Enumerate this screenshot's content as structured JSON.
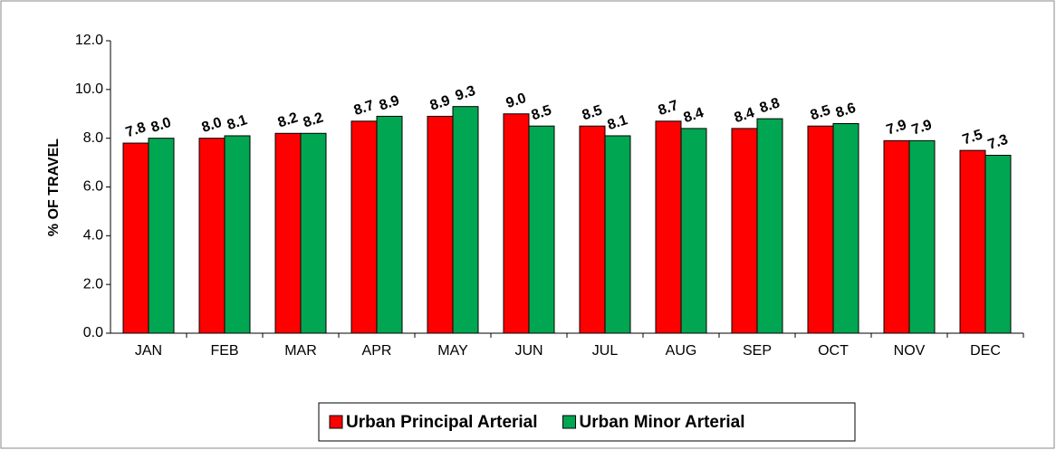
{
  "chart_data": {
    "type": "bar",
    "y_label": "% OF TRAVEL",
    "categories": [
      "JAN",
      "FEB",
      "MAR",
      "APR",
      "MAY",
      "JUN",
      "JUL",
      "AUG",
      "SEP",
      "OCT",
      "NOV",
      "DEC"
    ],
    "series": [
      {
        "name": "Urban Principal Arterial",
        "color": "#ff0000",
        "values": [
          7.8,
          8.0,
          8.2,
          8.7,
          8.9,
          9.0,
          8.5,
          8.7,
          8.4,
          8.5,
          7.9,
          7.5
        ],
        "value_labels": [
          "7.8",
          "8.0",
          "8.2",
          "8.7",
          "8.9",
          "9.0",
          "8.5",
          "8.7",
          "8.4",
          "8.5",
          "7.9",
          "7.5"
        ]
      },
      {
        "name": "Urban Minor Arterial",
        "color": "#00a651",
        "values": [
          8.0,
          8.1,
          8.2,
          8.9,
          9.3,
          8.5,
          8.1,
          8.4,
          8.8,
          8.6,
          7.9,
          7.3
        ],
        "value_labels": [
          "8.0",
          "8.1",
          "8.2",
          "8.9",
          "9.3",
          "8.5",
          "8.1",
          "8.4",
          "8.8",
          "8.6",
          "7.9",
          "7.3"
        ]
      }
    ],
    "ylim": [
      0,
      12
    ],
    "yticks": [
      {
        "value": 0,
        "label": "0.0"
      },
      {
        "value": 2,
        "label": "2.0"
      },
      {
        "value": 4,
        "label": "4.0"
      },
      {
        "value": 6,
        "label": "6.0"
      },
      {
        "value": 8,
        "label": "8.0"
      },
      {
        "value": 10,
        "label": "10.0"
      },
      {
        "value": 12,
        "label": "12.0"
      }
    ],
    "legend": "bottom"
  }
}
